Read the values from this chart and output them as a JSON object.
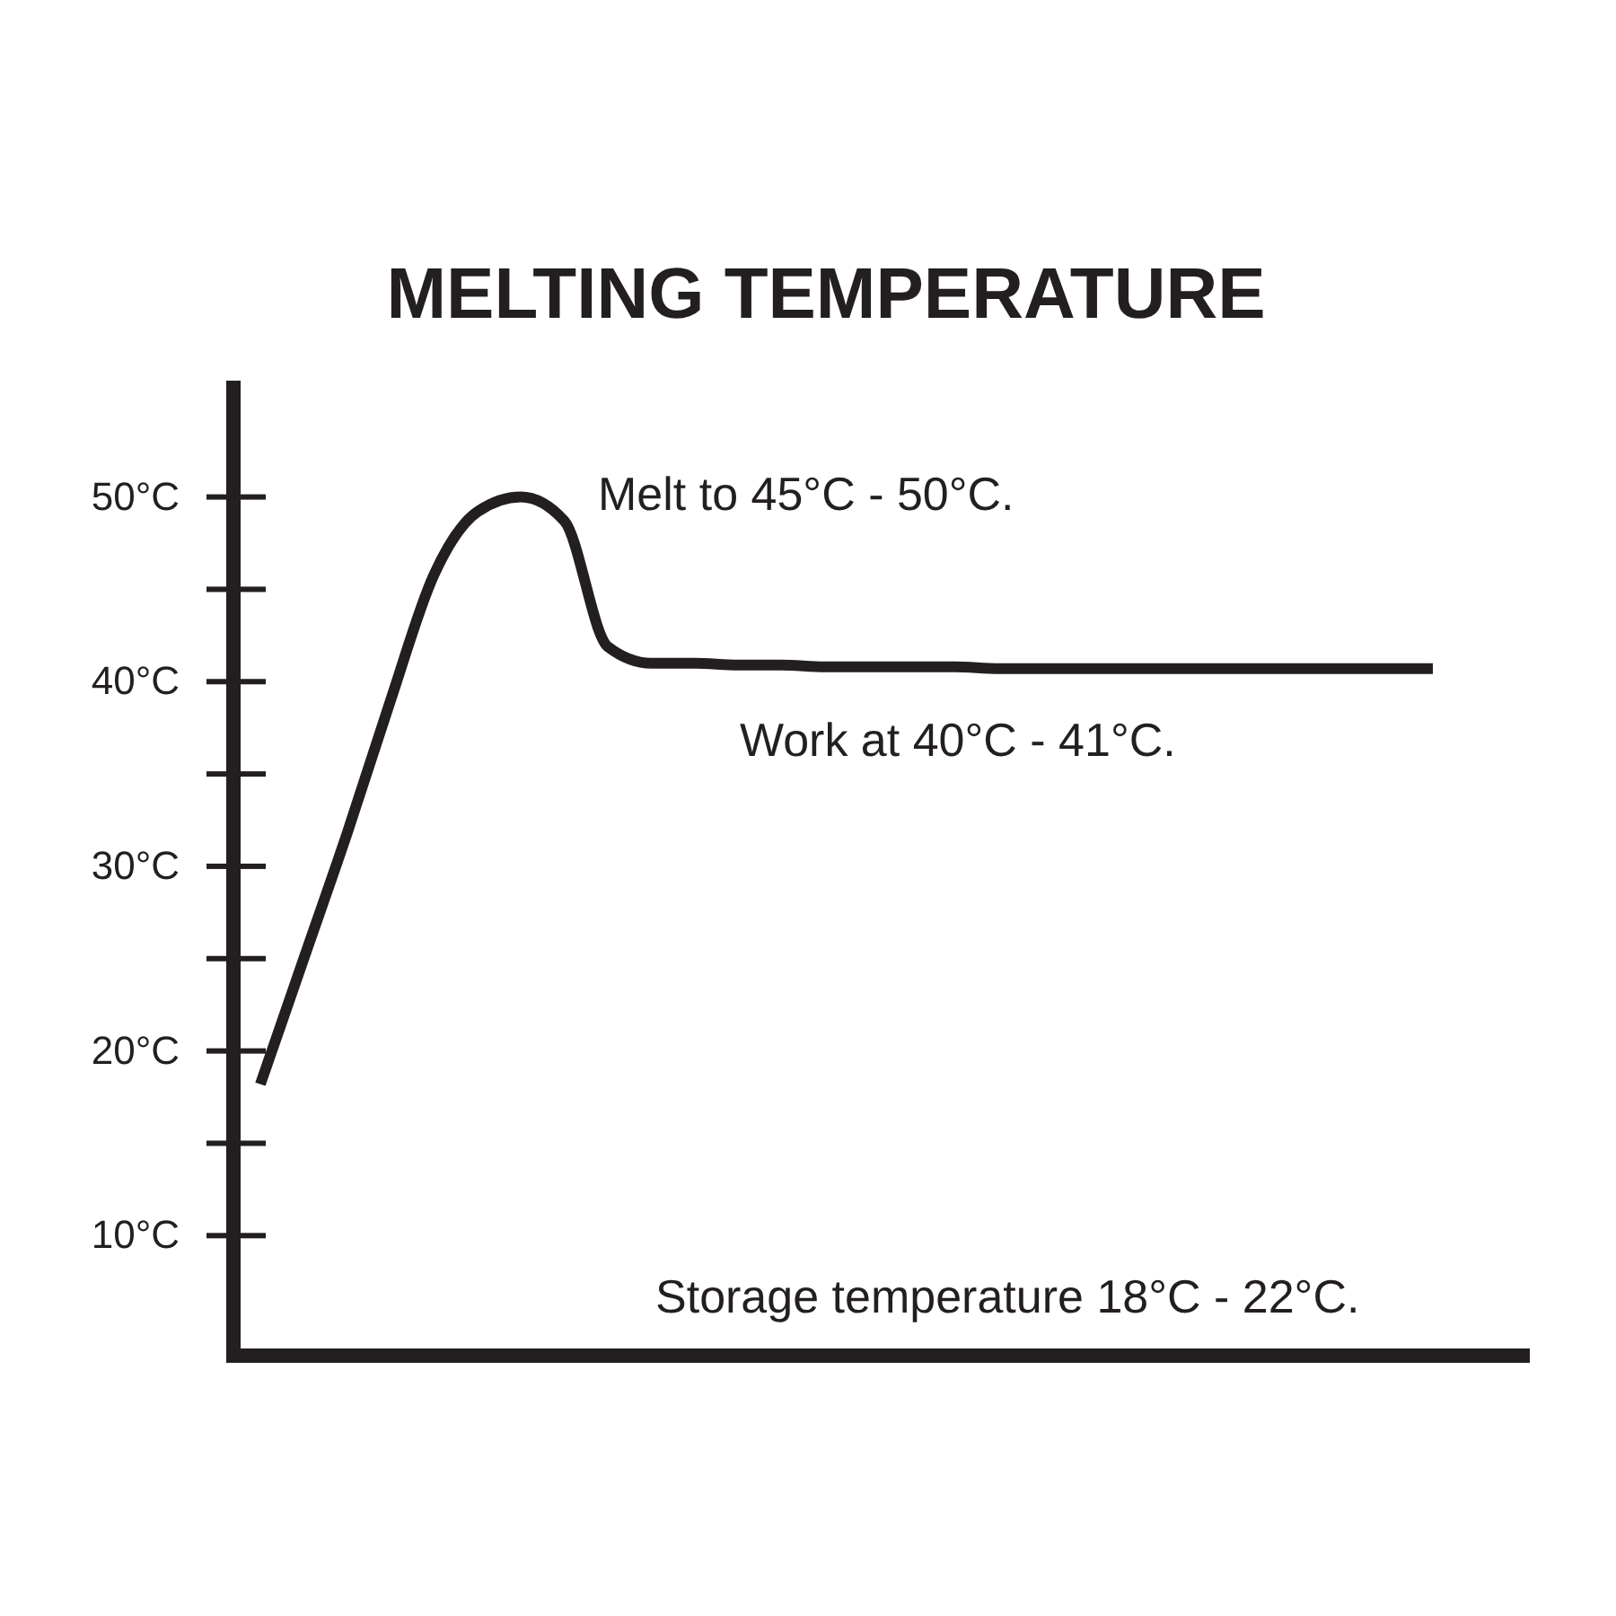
{
  "chart_data": {
    "type": "line",
    "title": "MELTING TEMPERATURE",
    "categories": [
      null,
      null,
      null,
      null,
      null,
      null,
      null,
      null,
      null,
      null,
      null,
      null,
      null,
      null,
      null,
      null,
      null,
      null,
      null,
      null,
      null,
      null,
      null,
      null,
      null,
      null,
      null,
      null
    ],
    "series": [
      {
        "color": "#231f20",
        "values": [
          18.2,
          25.0,
          31.8,
          39.0,
          45.8,
          49.2,
          50.0,
          48.7,
          41.9,
          41.0,
          41.0,
          40.9,
          40.9,
          40.8,
          40.8,
          40.8,
          40.8,
          40.7,
          40.7,
          40.7,
          40.7,
          40.7,
          40.7,
          40.7,
          40.7,
          40.7,
          40.7,
          40.7
        ]
      }
    ],
    "ylim": [
      3.5,
      56.3
    ],
    "yticks": [
      {
        "value": 10,
        "label": "10°C"
      },
      {
        "value": 15,
        "label": null
      },
      {
        "value": 20,
        "label": "20°C"
      },
      {
        "value": 25,
        "label": null
      },
      {
        "value": 30,
        "label": "30°C"
      },
      {
        "value": 35,
        "label": null
      },
      {
        "value": 40,
        "label": "40°C"
      },
      {
        "value": 45,
        "label": null
      },
      {
        "value": 50,
        "label": "50°C"
      }
    ],
    "annotations": [
      "Melt to 45°C - 50°C.",
      "Work at 40°C - 41°C.",
      "Storage temperature 18°C - 22°C."
    ]
  }
}
